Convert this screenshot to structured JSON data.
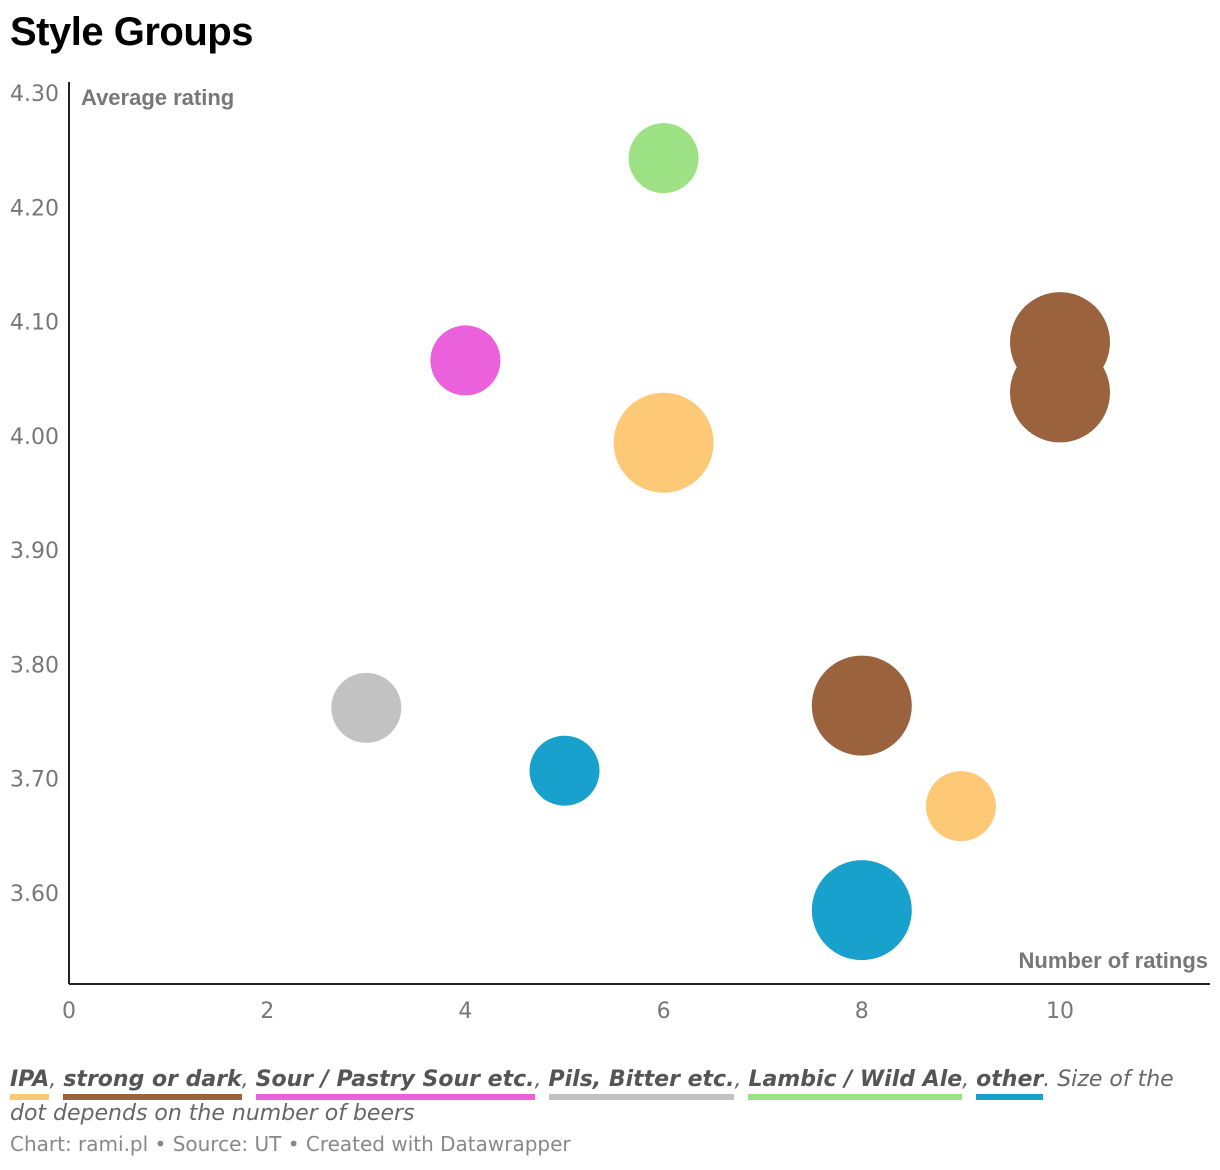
{
  "title": "Style Groups",
  "chart_data": {
    "type": "scatter",
    "xlabel": "Number of ratings",
    "ylabel": "Average rating",
    "xlim": [
      0,
      11.5
    ],
    "ylim": [
      3.52,
      4.3
    ],
    "x_ticks": [
      0,
      2,
      4,
      6,
      8,
      10
    ],
    "x_tick_labels": [
      "0",
      "2",
      "4",
      "6",
      "8",
      "10"
    ],
    "y_ticks": [
      3.6,
      3.7,
      3.8,
      3.9,
      4.0,
      4.1,
      4.2,
      4.3
    ],
    "y_tick_labels": [
      "3.60",
      "3.70",
      "3.80",
      "3.90",
      "4.00",
      "4.10",
      "4.20",
      "4.30"
    ],
    "grid": false,
    "points": [
      {
        "group": "Lambic / Wild Ale",
        "x": 6,
        "y": 4.243,
        "size": 1
      },
      {
        "group": "Sour / Pastry Sour etc.",
        "x": 4,
        "y": 4.066,
        "size": 1
      },
      {
        "group": "strong or dark",
        "x": 10,
        "y": 4.082,
        "size": 3
      },
      {
        "group": "strong or dark",
        "x": 10,
        "y": 4.038,
        "size": 3
      },
      {
        "group": "IPA",
        "x": 6,
        "y": 3.994,
        "size": 3
      },
      {
        "group": "Pils, Bitter etc.",
        "x": 3,
        "y": 3.762,
        "size": 1
      },
      {
        "group": "strong or dark",
        "x": 8,
        "y": 3.764,
        "size": 3
      },
      {
        "group": "other",
        "x": 5,
        "y": 3.707,
        "size": 1
      },
      {
        "group": "IPA",
        "x": 9,
        "y": 3.676,
        "size": 1
      },
      {
        "group": "other",
        "x": 8,
        "y": 3.585,
        "size": 3
      }
    ],
    "groups": [
      {
        "name": "IPA",
        "color": "#fdc977"
      },
      {
        "name": "strong or dark",
        "color": "#9b633d"
      },
      {
        "name": "Sour / Pastry Sour etc.",
        "color": "#eb60db"
      },
      {
        "name": "Pils, Bitter etc.",
        "color": "#c2c2c2"
      },
      {
        "name": "Lambic / Wild Ale",
        "color": "#9ce184"
      },
      {
        "name": "other",
        "color": "#18a1cd"
      }
    ]
  },
  "legend_note": ". Size of the dot depends on the number of beers",
  "footer": "Chart: rami.pl • Source: UT • Created with Datawrapper"
}
